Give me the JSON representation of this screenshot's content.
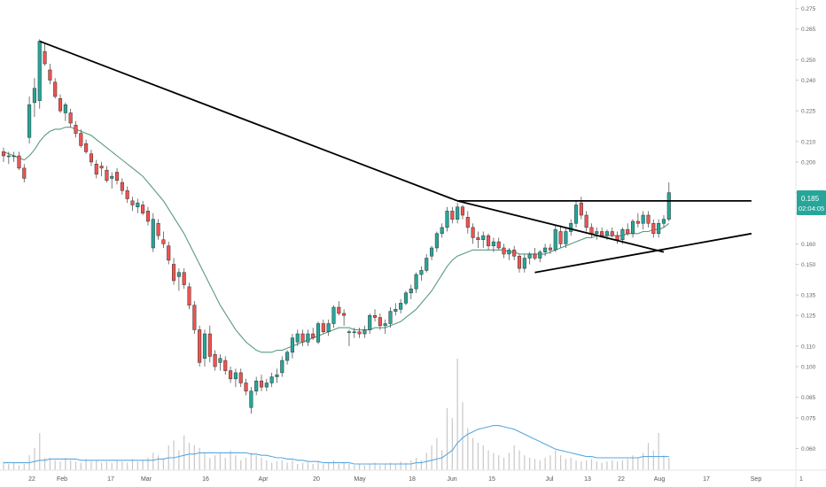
{
  "chart_data": {
    "type": "candlestick",
    "title": "",
    "xlabel": "",
    "ylabel": "",
    "ylim": [
      0.055,
      0.277
    ],
    "grid": false,
    "x_ticks": [
      "22",
      "Feb",
      "17",
      "Mar",
      "16",
      "Apr",
      "20",
      "May",
      "18",
      "Jun",
      "15",
      "Jul",
      "13",
      "22",
      "Aug",
      "17",
      "Sep",
      "1"
    ],
    "y_ticks": [
      "0.275",
      "0.265",
      "0.250",
      "0.240",
      "0.225",
      "0.210",
      "0.200",
      "0.185",
      "0.175",
      "0.160",
      "0.150",
      "0.135",
      "0.125",
      "0.110",
      "0.100",
      "0.085",
      "0.075",
      "0.060"
    ],
    "last_price": "0.185",
    "countdown": "02:04:05",
    "colors": {
      "up": "#26a69a",
      "down": "#ef5350",
      "ma": "#5a9a80",
      "volume": "#c8c8c8",
      "volume_ma": "#5aa8e0",
      "trendline": "#000000",
      "price_label": "#26a69a"
    },
    "candles": [
      [
        0.205,
        0.207,
        0.2,
        0.203
      ],
      [
        0.203,
        0.205,
        0.199,
        0.203
      ],
      [
        0.203,
        0.205,
        0.2,
        0.203
      ],
      [
        0.203,
        0.205,
        0.196,
        0.197
      ],
      [
        0.197,
        0.199,
        0.19,
        0.192
      ],
      [
        0.212,
        0.232,
        0.209,
        0.228
      ],
      [
        0.229,
        0.241,
        0.222,
        0.236
      ],
      [
        0.23,
        0.26,
        0.226,
        0.259
      ],
      [
        0.254,
        0.258,
        0.247,
        0.248
      ],
      [
        0.245,
        0.248,
        0.238,
        0.24
      ],
      [
        0.239,
        0.241,
        0.231,
        0.232
      ],
      [
        0.231,
        0.233,
        0.224,
        0.225
      ],
      [
        0.224,
        0.229,
        0.22,
        0.228
      ],
      [
        0.224,
        0.226,
        0.217,
        0.219
      ],
      [
        0.218,
        0.22,
        0.212,
        0.214
      ],
      [
        0.214,
        0.216,
        0.207,
        0.208
      ],
      [
        0.209,
        0.211,
        0.204,
        0.205
      ],
      [
        0.204,
        0.206,
        0.198,
        0.2
      ],
      [
        0.199,
        0.201,
        0.192,
        0.194
      ],
      [
        0.198,
        0.2,
        0.193,
        0.197
      ],
      [
        0.196,
        0.198,
        0.19,
        0.191
      ],
      [
        0.192,
        0.195,
        0.187,
        0.193
      ],
      [
        0.195,
        0.197,
        0.189,
        0.191
      ],
      [
        0.19,
        0.192,
        0.184,
        0.186
      ],
      [
        0.186,
        0.188,
        0.18,
        0.182
      ],
      [
        0.181,
        0.183,
        0.176,
        0.179
      ],
      [
        0.178,
        0.182,
        0.175,
        0.18
      ],
      [
        0.179,
        0.181,
        0.174,
        0.175
      ],
      [
        0.176,
        0.178,
        0.169,
        0.171
      ],
      [
        0.158,
        0.175,
        0.156,
        0.172
      ],
      [
        0.17,
        0.172,
        0.162,
        0.164
      ],
      [
        0.162,
        0.166,
        0.158,
        0.16
      ],
      [
        0.159,
        0.161,
        0.15,
        0.152
      ],
      [
        0.15,
        0.153,
        0.14,
        0.142
      ],
      [
        0.144,
        0.148,
        0.137,
        0.146
      ],
      [
        0.146,
        0.148,
        0.138,
        0.14
      ],
      [
        0.139,
        0.141,
        0.128,
        0.13
      ],
      [
        0.13,
        0.132,
        0.116,
        0.118
      ],
      [
        0.118,
        0.12,
        0.1,
        0.102
      ],
      [
        0.104,
        0.118,
        0.1,
        0.116
      ],
      [
        0.116,
        0.12,
        0.102,
        0.105
      ],
      [
        0.106,
        0.108,
        0.098,
        0.1
      ],
      [
        0.102,
        0.106,
        0.098,
        0.104
      ],
      [
        0.103,
        0.105,
        0.096,
        0.098
      ],
      [
        0.098,
        0.1,
        0.092,
        0.094
      ],
      [
        0.094,
        0.099,
        0.09,
        0.097
      ],
      [
        0.097,
        0.099,
        0.09,
        0.092
      ],
      [
        0.092,
        0.094,
        0.086,
        0.088
      ],
      [
        0.08,
        0.09,
        0.077,
        0.088
      ],
      [
        0.088,
        0.095,
        0.086,
        0.093
      ],
      [
        0.093,
        0.096,
        0.088,
        0.09
      ],
      [
        0.09,
        0.094,
        0.088,
        0.092
      ],
      [
        0.092,
        0.097,
        0.09,
        0.095
      ],
      [
        0.095,
        0.099,
        0.092,
        0.096
      ],
      [
        0.097,
        0.105,
        0.095,
        0.103
      ],
      [
        0.103,
        0.108,
        0.101,
        0.107
      ],
      [
        0.107,
        0.116,
        0.104,
        0.114
      ],
      [
        0.112,
        0.118,
        0.11,
        0.116
      ],
      [
        0.116,
        0.118,
        0.11,
        0.112
      ],
      [
        0.112,
        0.118,
        0.11,
        0.116
      ],
      [
        0.116,
        0.119,
        0.113,
        0.114
      ],
      [
        0.112,
        0.122,
        0.111,
        0.121
      ],
      [
        0.121,
        0.123,
        0.116,
        0.117
      ],
      [
        0.117,
        0.123,
        0.115,
        0.121
      ],
      [
        0.121,
        0.13,
        0.119,
        0.129
      ],
      [
        0.129,
        0.132,
        0.125,
        0.126
      ],
      [
        0.126,
        0.128,
        0.12,
        0.125
      ],
      [
        0.117,
        0.118,
        0.11,
        0.117
      ],
      [
        0.117,
        0.119,
        0.114,
        0.117
      ],
      [
        0.117,
        0.119,
        0.114,
        0.116
      ],
      [
        0.116,
        0.12,
        0.114,
        0.118
      ],
      [
        0.118,
        0.126,
        0.116,
        0.125
      ],
      [
        0.125,
        0.128,
        0.122,
        0.124
      ],
      [
        0.124,
        0.126,
        0.118,
        0.12
      ],
      [
        0.12,
        0.123,
        0.116,
        0.121
      ],
      [
        0.121,
        0.129,
        0.119,
        0.127
      ],
      [
        0.127,
        0.131,
        0.125,
        0.128
      ],
      [
        0.128,
        0.133,
        0.126,
        0.131
      ],
      [
        0.131,
        0.137,
        0.13,
        0.136
      ],
      [
        0.136,
        0.14,
        0.133,
        0.138
      ],
      [
        0.138,
        0.146,
        0.136,
        0.145
      ],
      [
        0.145,
        0.149,
        0.142,
        0.147
      ],
      [
        0.147,
        0.155,
        0.146,
        0.153
      ],
      [
        0.154,
        0.159,
        0.152,
        0.158
      ],
      [
        0.158,
        0.166,
        0.156,
        0.165
      ],
      [
        0.165,
        0.17,
        0.163,
        0.168
      ],
      [
        0.168,
        0.178,
        0.166,
        0.176
      ],
      [
        0.176,
        0.178,
        0.17,
        0.172
      ],
      [
        0.172,
        0.18,
        0.17,
        0.178
      ],
      [
        0.178,
        0.179,
        0.172,
        0.174
      ],
      [
        0.173,
        0.176,
        0.165,
        0.168
      ],
      [
        0.168,
        0.17,
        0.16,
        0.163
      ],
      [
        0.163,
        0.166,
        0.158,
        0.162
      ],
      [
        0.162,
        0.166,
        0.158,
        0.164
      ],
      [
        0.164,
        0.165,
        0.157,
        0.159
      ],
      [
        0.159,
        0.163,
        0.156,
        0.161
      ],
      [
        0.161,
        0.163,
        0.157,
        0.158
      ],
      [
        0.158,
        0.16,
        0.153,
        0.155
      ],
      [
        0.155,
        0.158,
        0.152,
        0.157
      ],
      [
        0.157,
        0.159,
        0.152,
        0.154
      ],
      [
        0.154,
        0.155,
        0.146,
        0.148
      ],
      [
        0.148,
        0.155,
        0.146,
        0.153
      ],
      [
        0.153,
        0.156,
        0.15,
        0.155
      ],
      [
        0.155,
        0.158,
        0.152,
        0.153
      ],
      [
        0.153,
        0.157,
        0.151,
        0.156
      ],
      [
        0.156,
        0.16,
        0.154,
        0.158
      ],
      [
        0.158,
        0.16,
        0.155,
        0.157
      ],
      [
        0.157,
        0.169,
        0.156,
        0.167
      ],
      [
        0.166,
        0.169,
        0.158,
        0.16
      ],
      [
        0.16,
        0.168,
        0.158,
        0.166
      ],
      [
        0.166,
        0.172,
        0.164,
        0.17
      ],
      [
        0.17,
        0.181,
        0.168,
        0.179
      ],
      [
        0.18,
        0.183,
        0.172,
        0.174
      ],
      [
        0.174,
        0.176,
        0.166,
        0.168
      ],
      [
        0.168,
        0.17,
        0.163,
        0.165
      ],
      [
        0.165,
        0.168,
        0.162,
        0.166
      ],
      [
        0.166,
        0.168,
        0.163,
        0.164
      ],
      [
        0.164,
        0.167,
        0.162,
        0.166
      ],
      [
        0.166,
        0.168,
        0.163,
        0.164
      ],
      [
        0.164,
        0.166,
        0.16,
        0.162
      ],
      [
        0.162,
        0.168,
        0.16,
        0.167
      ],
      [
        0.167,
        0.17,
        0.164,
        0.165
      ],
      [
        0.165,
        0.172,
        0.163,
        0.171
      ],
      [
        0.171,
        0.175,
        0.168,
        0.17
      ],
      [
        0.17,
        0.176,
        0.167,
        0.174
      ],
      [
        0.174,
        0.176,
        0.168,
        0.17
      ],
      [
        0.17,
        0.172,
        0.163,
        0.165
      ],
      [
        0.165,
        0.172,
        0.163,
        0.17
      ],
      [
        0.17,
        0.174,
        0.168,
        0.172
      ],
      [
        0.172,
        0.19,
        0.171,
        0.185
      ]
    ],
    "ma_values": [
      0.205,
      0.204,
      0.203,
      0.202,
      0.201,
      0.203,
      0.206,
      0.21,
      0.213,
      0.215,
      0.216,
      0.216,
      0.217,
      0.217,
      0.216,
      0.215,
      0.214,
      0.213,
      0.211,
      0.209,
      0.207,
      0.205,
      0.203,
      0.201,
      0.199,
      0.197,
      0.195,
      0.193,
      0.19,
      0.187,
      0.184,
      0.181,
      0.177,
      0.173,
      0.169,
      0.165,
      0.16,
      0.155,
      0.15,
      0.145,
      0.14,
      0.135,
      0.13,
      0.126,
      0.122,
      0.118,
      0.115,
      0.112,
      0.11,
      0.108,
      0.107,
      0.107,
      0.107,
      0.108,
      0.108,
      0.109,
      0.11,
      0.111,
      0.112,
      0.113,
      0.114,
      0.115,
      0.116,
      0.117,
      0.118,
      0.119,
      0.119,
      0.119,
      0.118,
      0.118,
      0.118,
      0.118,
      0.119,
      0.119,
      0.119,
      0.12,
      0.121,
      0.122,
      0.124,
      0.126,
      0.128,
      0.131,
      0.134,
      0.137,
      0.141,
      0.145,
      0.149,
      0.152,
      0.154,
      0.155,
      0.156,
      0.157,
      0.157,
      0.157,
      0.157,
      0.157,
      0.157,
      0.157,
      0.156,
      0.156,
      0.155,
      0.155,
      0.155,
      0.155,
      0.155,
      0.155,
      0.156,
      0.157,
      0.158,
      0.159,
      0.16,
      0.161,
      0.162,
      0.163,
      0.163,
      0.164,
      0.164,
      0.164,
      0.164,
      0.164,
      0.164,
      0.165,
      0.165,
      0.165,
      0.166,
      0.166,
      0.167,
      0.167,
      0.168,
      0.17
    ],
    "volumes": [
      0.07,
      0.05,
      0.06,
      0.04,
      0.05,
      0.12,
      0.18,
      0.3,
      0.1,
      0.1,
      0.08,
      0.07,
      0.1,
      0.08,
      0.07,
      0.06,
      0.09,
      0.07,
      0.08,
      0.06,
      0.07,
      0.06,
      0.08,
      0.07,
      0.06,
      0.09,
      0.07,
      0.08,
      0.1,
      0.14,
      0.12,
      0.09,
      0.2,
      0.24,
      0.16,
      0.28,
      0.22,
      0.2,
      0.18,
      0.14,
      0.1,
      0.12,
      0.14,
      0.1,
      0.16,
      0.12,
      0.08,
      0.1,
      0.14,
      0.12,
      0.1,
      0.08,
      0.06,
      0.07,
      0.08,
      0.06,
      0.08,
      0.05,
      0.06,
      0.06,
      0.05,
      0.07,
      0.05,
      0.06,
      0.08,
      0.05,
      0.06,
      0.05,
      0.04,
      0.05,
      0.04,
      0.05,
      0.06,
      0.04,
      0.05,
      0.06,
      0.05,
      0.07,
      0.06,
      0.08,
      0.1,
      0.08,
      0.14,
      0.2,
      0.26,
      0.16,
      0.5,
      0.42,
      0.9,
      0.55,
      0.34,
      0.26,
      0.22,
      0.2,
      0.16,
      0.14,
      0.12,
      0.1,
      0.14,
      0.2,
      0.16,
      0.12,
      0.1,
      0.09,
      0.08,
      0.1,
      0.12,
      0.16,
      0.12,
      0.09,
      0.1,
      0.08,
      0.07,
      0.08,
      0.09,
      0.07,
      0.06,
      0.07,
      0.08,
      0.07,
      0.08,
      0.09,
      0.12,
      0.1,
      0.14,
      0.22,
      0.16,
      0.3,
      0.12,
      0.1
    ],
    "volume_ma": [
      0.06,
      0.06,
      0.06,
      0.06,
      0.06,
      0.06,
      0.07,
      0.08,
      0.08,
      0.09,
      0.09,
      0.09,
      0.09,
      0.09,
      0.09,
      0.08,
      0.08,
      0.08,
      0.08,
      0.08,
      0.08,
      0.08,
      0.08,
      0.08,
      0.08,
      0.08,
      0.08,
      0.08,
      0.08,
      0.08,
      0.09,
      0.09,
      0.1,
      0.1,
      0.11,
      0.12,
      0.13,
      0.13,
      0.14,
      0.14,
      0.14,
      0.14,
      0.14,
      0.14,
      0.14,
      0.14,
      0.14,
      0.14,
      0.13,
      0.13,
      0.12,
      0.12,
      0.11,
      0.1,
      0.1,
      0.09,
      0.09,
      0.08,
      0.08,
      0.07,
      0.07,
      0.07,
      0.06,
      0.06,
      0.06,
      0.06,
      0.06,
      0.06,
      0.05,
      0.05,
      0.05,
      0.05,
      0.05,
      0.05,
      0.05,
      0.05,
      0.05,
      0.05,
      0.05,
      0.05,
      0.06,
      0.06,
      0.07,
      0.08,
      0.09,
      0.1,
      0.13,
      0.16,
      0.22,
      0.26,
      0.29,
      0.31,
      0.33,
      0.34,
      0.35,
      0.36,
      0.36,
      0.35,
      0.34,
      0.33,
      0.31,
      0.29,
      0.27,
      0.25,
      0.23,
      0.21,
      0.19,
      0.17,
      0.16,
      0.15,
      0.14,
      0.13,
      0.12,
      0.11,
      0.11,
      0.1,
      0.1,
      0.1,
      0.1,
      0.1,
      0.1,
      0.1,
      0.1,
      0.1,
      0.11,
      0.11,
      0.11,
      0.11,
      0.11,
      0.11
    ],
    "trendlines": [
      {
        "from": [
          7,
          0.259
        ],
        "to": [
          88,
          0.181
        ]
      },
      {
        "from": [
          88,
          0.181
        ],
        "to": [
          128,
          0.156
        ]
      },
      {
        "from": [
          88,
          0.181
        ],
        "to": [
          145,
          0.181
        ]
      },
      {
        "from": [
          103,
          0.146
        ],
        "to": [
          145,
          0.165
        ]
      }
    ]
  }
}
